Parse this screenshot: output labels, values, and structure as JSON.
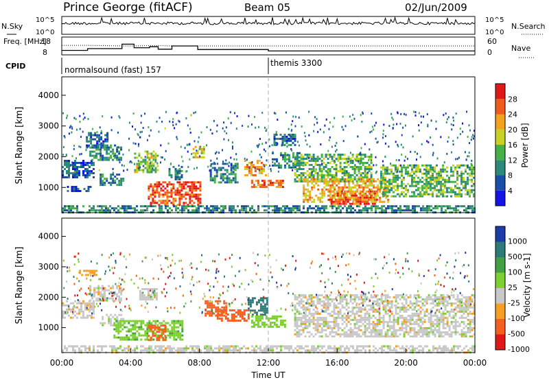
{
  "header": {
    "station": "Prince George (fitACF)",
    "beam": "Beam 05",
    "date": "02/Jun/2009"
  },
  "chart_data": [
    {
      "type": "line",
      "panel": "noise",
      "left_label": "N.Sky",
      "right_label": "N.Search",
      "left_ticks": [
        "10^5",
        "10^0"
      ],
      "right_ticks": [
        "10^5",
        "10^0"
      ],
      "series": [
        {
          "name": "N.Sky",
          "style": "solid",
          "level": "near top of panel with frequent spikes"
        },
        {
          "name": "N.Search",
          "style": "dotted"
        }
      ]
    },
    {
      "type": "line",
      "panel": "freq",
      "left_label": "Freq. [MHz]",
      "right_label": "Nave",
      "left_ticks": [
        "18",
        "8"
      ],
      "right_ticks": [
        "60",
        "0"
      ],
      "x": [
        0,
        1.5,
        3.5,
        4.2,
        5.1,
        5.6,
        6.4,
        7.9,
        12,
        24
      ],
      "freq_mhz": [
        10.5,
        11.5,
        14,
        12,
        12.6,
        11.2,
        13,
        11,
        10.2,
        10.2
      ],
      "nave": [
        32,
        32,
        30,
        30,
        31,
        31,
        30,
        30,
        30,
        30
      ]
    },
    {
      "type": "table",
      "panel": "cpid",
      "label": "CPID",
      "segments": [
        {
          "name": "normalsound (fast) 157",
          "start_hour": 0,
          "end_hour": 12
        },
        {
          "name": "themis 3300",
          "start_hour": 12,
          "end_hour": 24
        }
      ]
    },
    {
      "type": "heatmap",
      "panel": "power",
      "ylabel": "Slant Range [km]",
      "yticks": [
        1000,
        2000,
        3000,
        4000
      ],
      "ylim": [
        180,
        4600
      ],
      "xlim": [
        0,
        24
      ],
      "colorbar": {
        "label": "Power [dB]",
        "ticks": [
          4,
          8,
          12,
          16,
          20,
          24,
          28
        ],
        "range": [
          0,
          32
        ],
        "colors": [
          "#1414e6",
          "#1a4fa8",
          "#2c8a7a",
          "#48b048",
          "#c8d224",
          "#f2a21c",
          "#f05a1c",
          "#e01818"
        ]
      },
      "regions": [
        {
          "t": [
            0.0,
            1.9
          ],
          "r": [
            1350,
            1900
          ],
          "v": 7
        },
        {
          "t": [
            0.3,
            1.7
          ],
          "r": [
            850,
            1050
          ],
          "v": 6
        },
        {
          "t": [
            1.4,
            2.6
          ],
          "r": [
            2300,
            2800
          ],
          "v": 7
        },
        {
          "t": [
            1.6,
            3.4
          ],
          "r": [
            1900,
            2400
          ],
          "v": 11
        },
        {
          "t": [
            2.2,
            3.6
          ],
          "r": [
            1050,
            1450
          ],
          "v": 9
        },
        {
          "t": [
            4.2,
            5.6
          ],
          "r": [
            1500,
            2200
          ],
          "v": 16
        },
        {
          "t": [
            5.0,
            8.0
          ],
          "r": [
            450,
            1200
          ],
          "v": 27
        },
        {
          "t": [
            6.2,
            7.0
          ],
          "r": [
            1250,
            1700
          ],
          "v": 9
        },
        {
          "t": [
            7.6,
            8.3
          ],
          "r": [
            1950,
            2350
          ],
          "v": 18
        },
        {
          "t": [
            8.6,
            10.2
          ],
          "r": [
            1150,
            1800
          ],
          "v": 9
        },
        {
          "t": [
            10.6,
            11.9
          ],
          "r": [
            1400,
            1900
          ],
          "v": 22
        },
        {
          "t": [
            11.0,
            12.9
          ],
          "r": [
            1000,
            1250
          ],
          "v": 25
        },
        {
          "t": [
            12.2,
            13.8
          ],
          "r": [
            1650,
            2150
          ],
          "v": 10
        },
        {
          "t": [
            12.3,
            13.6
          ],
          "r": [
            2350,
            2750
          ],
          "v": 8
        },
        {
          "t": [
            13.5,
            18.0
          ],
          "r": [
            1200,
            2100
          ],
          "v": 14
        },
        {
          "t": [
            14.0,
            19.0
          ],
          "r": [
            500,
            1300
          ],
          "v": 21
        },
        {
          "t": [
            15.5,
            18.3
          ],
          "r": [
            450,
            900
          ],
          "v": 26
        },
        {
          "t": [
            18.5,
            24.0
          ],
          "r": [
            700,
            1750
          ],
          "v": 14
        },
        {
          "t": [
            0.0,
            24.0
          ],
          "r": [
            200,
            420
          ],
          "v": 10
        }
      ]
    },
    {
      "type": "heatmap",
      "panel": "velocity",
      "ylabel": "Slant Range [km]",
      "yticks": [
        1000,
        2000,
        3000,
        4000
      ],
      "ylim": [
        180,
        4600
      ],
      "xlim": [
        0,
        24
      ],
      "xlabel": "Time UT",
      "xticks": [
        "00:00",
        "04:00",
        "08:00",
        "12:00",
        "16:00",
        "20:00",
        "00:00"
      ],
      "colorbar": {
        "label": "Velocity [m s-1]",
        "ticks": [
          "1000",
          "500",
          "100",
          "25",
          "-25",
          "-100",
          "-500",
          "-1000"
        ],
        "colors": [
          "#1c3ca8",
          "#2e7a78",
          "#44a044",
          "#7cd030",
          "#c8c8c8",
          "#f5a020",
          "#f56020",
          "#e01818"
        ]
      },
      "regions": [
        {
          "t": [
            0.0,
            1.9
          ],
          "r": [
            1350,
            1900
          ],
          "v": -10
        },
        {
          "t": [
            1.6,
            3.4
          ],
          "r": [
            1900,
            2400
          ],
          "v": 0
        },
        {
          "t": [
            2.2,
            3.6
          ],
          "r": [
            1050,
            1450
          ],
          "v": 5
        },
        {
          "t": [
            3.0,
            7.0
          ],
          "r": [
            600,
            1250
          ],
          "v": 80
        },
        {
          "t": [
            4.5,
            5.5
          ],
          "r": [
            1900,
            2300
          ],
          "v": 0
        },
        {
          "t": [
            5.0,
            6.0
          ],
          "r": [
            600,
            1100
          ],
          "v": -150
        },
        {
          "t": [
            8.3,
            9.5
          ],
          "r": [
            1400,
            1900
          ],
          "v": -300
        },
        {
          "t": [
            9.0,
            10.8
          ],
          "r": [
            1200,
            1600
          ],
          "v": -150
        },
        {
          "t": [
            10.8,
            11.9
          ],
          "r": [
            1400,
            2000
          ],
          "v": 600
        },
        {
          "t": [
            11.0,
            13.0
          ],
          "r": [
            1000,
            1400
          ],
          "v": 60
        },
        {
          "t": [
            13.5,
            24.0
          ],
          "r": [
            700,
            2100
          ],
          "v": 0
        },
        {
          "t": [
            1.0,
            2.0
          ],
          "r": [
            2700,
            2900
          ],
          "v": -60
        },
        {
          "t": [
            0.0,
            24.0
          ],
          "r": [
            200,
            420
          ],
          "v": 0
        }
      ]
    }
  ]
}
